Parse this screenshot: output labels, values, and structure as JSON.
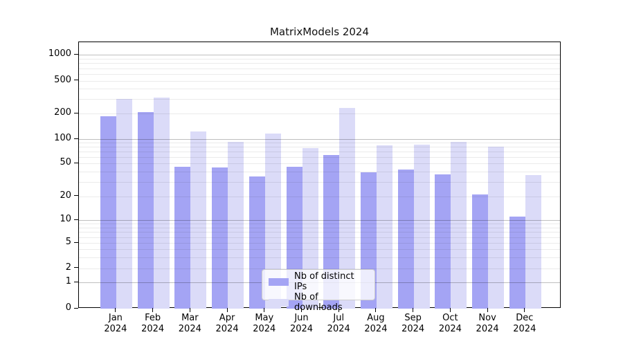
{
  "chart_data": {
    "type": "bar",
    "title": "MatrixModels 2024",
    "categories": [
      "Jan 2024",
      "Feb 2024",
      "Mar 2024",
      "Apr 2024",
      "May 2024",
      "Jun 2024",
      "Jul 2024",
      "Aug 2024",
      "Sep 2024",
      "Oct 2024",
      "Nov 2024",
      "Dec 2024"
    ],
    "series": [
      {
        "name": "Nb of distinct IPs",
        "color": "#a4a4f4",
        "values": [
          185,
          210,
          46,
          45,
          35,
          46,
          64,
          39,
          42,
          37,
          21,
          11
        ]
      },
      {
        "name": "Nb of downloads",
        "color": "#dbdbf8",
        "values": [
          300,
          315,
          123,
          92,
          116,
          77,
          235,
          84,
          85,
          93,
          80,
          36
        ]
      }
    ],
    "xlabel": "",
    "ylabel": "",
    "yscale": "symlog",
    "ylim": [
      0,
      1400
    ],
    "ytick_values": [
      0,
      1,
      2,
      5,
      10,
      20,
      50,
      100,
      200,
      500,
      1000
    ],
    "ytick_labels": [
      "0",
      "1",
      "2",
      "5",
      "10",
      "20",
      "50",
      "100",
      "200",
      "500",
      "1000"
    ],
    "grid": "horizontal, major (1,10,100,1000) and log minors",
    "legend_position": "lower center"
  }
}
